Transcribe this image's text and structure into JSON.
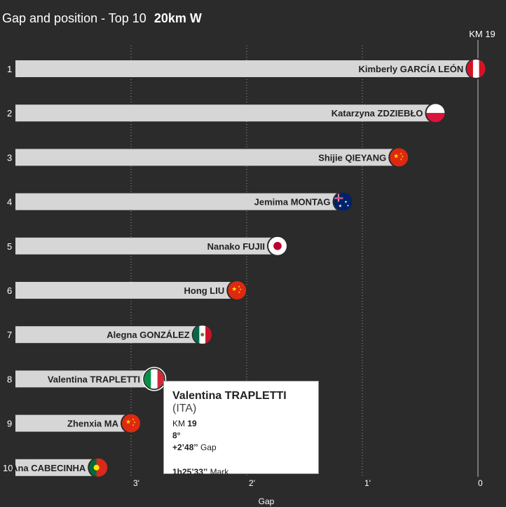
{
  "header": {
    "title": "Gap and position - Top 10",
    "event": "20km W"
  },
  "chart_data": {
    "type": "bar",
    "title": "Gap and position - Top 10",
    "subtitle": "20km W",
    "marker_label": "KM 19",
    "xlabel": "Gap",
    "x_ticks": [
      "3'",
      "2'",
      "1'",
      "0"
    ],
    "x_tick_values": [
      180,
      120,
      60,
      0
    ],
    "xlim": [
      188,
      0
    ],
    "x_reversed": true,
    "units": "seconds behind leader",
    "categories": [
      "1",
      "2",
      "3",
      "4",
      "5",
      "6",
      "7",
      "8",
      "9",
      "10"
    ],
    "series": [
      {
        "athletes": [
          "Kimberly GARCÍA LEÓN",
          "Katarzyna ZDZIEBŁO",
          "Shijie QIEYANG",
          "Jemima MONTAG",
          "Nanako FUJII",
          "Hong LIU",
          "Alegna GONZÁLEZ",
          "Valentina TRAPLETTI",
          "Zhenxia MA",
          "Ana CABECINHA"
        ],
        "flags": [
          "PER",
          "POL",
          "CHN",
          "AUS",
          "JPN",
          "CHN",
          "MEX",
          "ITA",
          "CHN",
          "POR"
        ],
        "values": [
          1,
          22,
          41,
          70,
          104,
          125,
          143,
          168,
          180,
          197
        ]
      }
    ],
    "highlighted_index": 7,
    "grid": true
  },
  "tooltip": {
    "name": "Valentina TRAPLETTI",
    "nation": "(ITA)",
    "km_label": "KM",
    "km_value": "19",
    "position": "8°",
    "gap_value": "+2’48’’",
    "gap_label": "Gap",
    "mark_value": "1h25’33’’",
    "mark_label": "Mark"
  },
  "colors": {
    "background": "#2b2b2b",
    "bar": "#d6d6d6",
    "text": "#ffffff"
  }
}
